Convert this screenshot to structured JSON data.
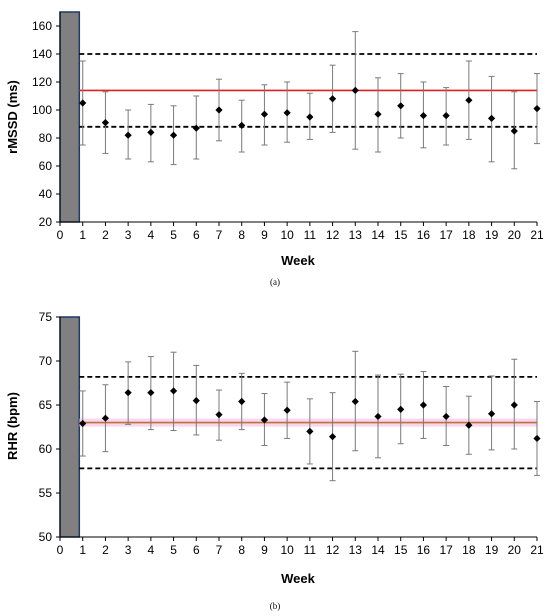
{
  "chart_data": [
    {
      "type": "scatter",
      "panel_label": "(a)",
      "xlabel": "Week",
      "ylabel": "rMSSD (ms)",
      "xlim": [
        0,
        21
      ],
      "ylim": [
        20,
        170
      ],
      "x_ticks": [
        "0",
        "1",
        "2",
        "3",
        "4",
        "5",
        "6",
        "7",
        "8",
        "9",
        "10",
        "11",
        "12",
        "13",
        "14",
        "15",
        "16",
        "17",
        "18",
        "19",
        "20",
        "21"
      ],
      "y_ticks": [
        "20",
        "40",
        "60",
        "80",
        "100",
        "120",
        "140",
        "160"
      ],
      "baseline_bar": {
        "x_start": 0,
        "x_end": 0.85,
        "color": "#808080"
      },
      "reference_lines": {
        "mean": 114,
        "upper": 140,
        "lower": 88
      },
      "series": [
        {
          "x": [
            1,
            2,
            3,
            4,
            5,
            6,
            7,
            8,
            9,
            10,
            11,
            12,
            13,
            14,
            15,
            16,
            17,
            18,
            19,
            20,
            21
          ],
          "values": [
            105,
            91,
            82,
            84,
            82,
            87,
            100,
            89,
            97,
            98,
            95,
            108,
            114,
            97,
            103,
            96,
            96,
            107,
            94,
            85,
            101
          ],
          "error_low": [
            75,
            69,
            65,
            63,
            61,
            65,
            78,
            70,
            75,
            77,
            79,
            84,
            72,
            70,
            80,
            73,
            75,
            79,
            63,
            58,
            76
          ],
          "error_high": [
            135,
            113,
            100,
            104,
            103,
            110,
            122,
            107,
            118,
            120,
            112,
            132,
            156,
            123,
            126,
            120,
            116,
            135,
            124,
            113,
            126
          ]
        }
      ],
      "colors": {
        "mean_line": "#e02020",
        "limit_lines": "#000000",
        "points": "#000000",
        "errorbars": "#7a7a7a"
      }
    },
    {
      "type": "scatter",
      "panel_label": "(b)",
      "xlabel": "Week",
      "ylabel": "RHR (bpm)",
      "xlim": [
        0,
        21
      ],
      "ylim": [
        50,
        75
      ],
      "x_ticks": [
        "0",
        "1",
        "2",
        "3",
        "4",
        "5",
        "6",
        "7",
        "8",
        "9",
        "10",
        "11",
        "12",
        "13",
        "14",
        "15",
        "16",
        "17",
        "18",
        "19",
        "20",
        "21"
      ],
      "y_ticks": [
        "50",
        "55",
        "60",
        "65",
        "70",
        "75"
      ],
      "baseline_bar": {
        "x_start": 0,
        "x_end": 0.85,
        "color": "#808080"
      },
      "reference_lines": {
        "mean": 63.0,
        "upper": 68.2,
        "lower": 57.8
      },
      "series": [
        {
          "x": [
            1,
            2,
            3,
            4,
            5,
            6,
            7,
            8,
            9,
            10,
            11,
            12,
            13,
            14,
            15,
            16,
            17,
            18,
            19,
            20,
            21
          ],
          "values": [
            62.9,
            63.5,
            66.4,
            66.4,
            66.6,
            65.5,
            63.9,
            65.4,
            63.3,
            64.4,
            62.0,
            61.4,
            65.4,
            63.7,
            64.5,
            65.0,
            63.7,
            62.7,
            64.0,
            65.0,
            61.2
          ],
          "error_low": [
            59.2,
            59.7,
            62.8,
            62.2,
            62.1,
            61.6,
            61.0,
            62.2,
            60.4,
            61.2,
            58.3,
            56.4,
            59.8,
            59.0,
            60.6,
            61.2,
            60.4,
            59.4,
            59.9,
            60.0,
            57.0
          ],
          "error_high": [
            66.6,
            67.3,
            69.9,
            70.5,
            71.0,
            69.5,
            66.7,
            68.6,
            66.3,
            67.6,
            65.7,
            66.4,
            71.1,
            68.4,
            68.5,
            68.8,
            67.1,
            66.0,
            68.3,
            70.2,
            65.4
          ]
        }
      ],
      "colors": {
        "mean_line": "#c0703a",
        "mean_band": "#f5c6e6",
        "limit_lines": "#000000",
        "points": "#000000",
        "errorbars": "#7a7a7a"
      }
    }
  ]
}
